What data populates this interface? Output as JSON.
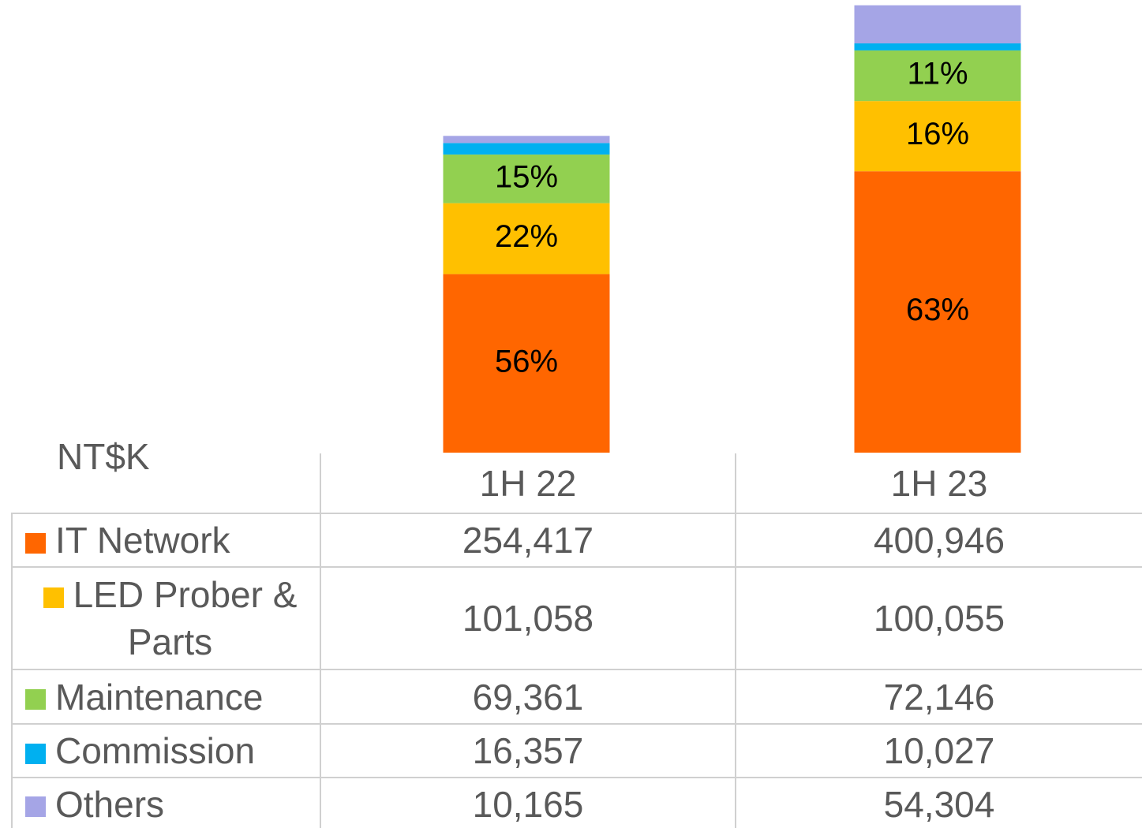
{
  "chart_data": {
    "type": "stacked_bar",
    "unit_label": "NT$K",
    "categories": [
      "1H 22",
      "1H 23"
    ],
    "ylim": [
      0,
      645000
    ],
    "series": [
      {
        "name": "IT Network",
        "color": "#ff6600",
        "values": [
          254417,
          400946
        ],
        "value_labels": [
          "254,417",
          "400,946"
        ],
        "share_labels": [
          "56%",
          "63%"
        ]
      },
      {
        "name": "LED Prober & Parts",
        "color": "#ffc000",
        "values": [
          101058,
          100055
        ],
        "value_labels": [
          "101,058",
          "100,055"
        ],
        "share_labels": [
          "22%",
          "16%"
        ]
      },
      {
        "name": "Maintenance",
        "color": "#92d050",
        "values": [
          69361,
          72146
        ],
        "value_labels": [
          "69,361",
          "72,146"
        ],
        "share_labels": [
          "15%",
          "11%"
        ]
      },
      {
        "name": "Commission",
        "color": "#00b0f0",
        "values": [
          16357,
          10027
        ],
        "value_labels": [
          "16,357",
          "10,027"
        ],
        "share_labels": [
          null,
          null
        ]
      },
      {
        "name": "Others",
        "color": "#a5a5e6",
        "values": [
          10165,
          54304
        ],
        "value_labels": [
          "10,165",
          "54,304"
        ],
        "share_labels": [
          null,
          null
        ]
      }
    ]
  }
}
